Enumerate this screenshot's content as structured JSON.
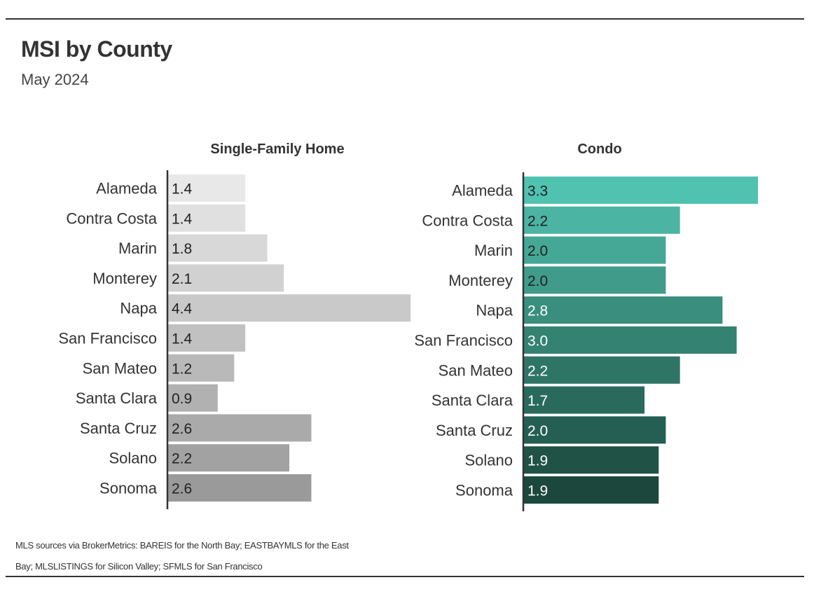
{
  "title": "MSI by County",
  "subtitle": "May 2024",
  "footer": "MLS sources via BrokerMetrics: BAREIS for the North Bay; EASTBAYMLS for the East Bay; MLSLISTINGS for Silicon Valley; SFMLS for San Francisco",
  "chart_data": [
    {
      "type": "bar",
      "orientation": "horizontal",
      "title": "Single-Family Home",
      "categories": [
        "Alameda",
        "Contra Costa",
        "Marin",
        "Monterey",
        "Napa",
        "San Francisco",
        "San Mateo",
        "Santa Clara",
        "Santa Cruz",
        "Solano",
        "Sonoma"
      ],
      "values": [
        1.4,
        1.4,
        1.8,
        2.1,
        4.4,
        1.4,
        1.2,
        0.9,
        2.6,
        2.2,
        2.6
      ],
      "data_labels": [
        "1.4",
        "1.4",
        "1.8",
        "2.1",
        "4.4",
        "1.4",
        "1.2",
        "0.9",
        "2.6",
        "2.2",
        "2.6"
      ],
      "colors": [
        "#e8e8e8",
        "#e0e0e0",
        "#d8d8d8",
        "#d1d1d1",
        "#c9c9c9",
        "#c1c1c1",
        "#b9b9b9",
        "#b1b1b1",
        "#aaaaaa",
        "#a2a2a2",
        "#9a9a9a"
      ],
      "label_color": "#222222",
      "xlim": [
        0,
        4.4
      ],
      "grid": false,
      "legend": "none"
    },
    {
      "type": "bar",
      "orientation": "horizontal",
      "title": "Condo",
      "categories": [
        "Alameda",
        "Contra Costa",
        "Marin",
        "Monterey",
        "Napa",
        "San Francisco",
        "San Mateo",
        "Santa Clara",
        "Santa Cruz",
        "Solano",
        "Sonoma"
      ],
      "values": [
        3.3,
        2.2,
        2.0,
        2.0,
        2.8,
        3.0,
        2.2,
        1.7,
        2.0,
        1.9,
        1.9
      ],
      "data_labels": [
        "3.3",
        "2.2",
        "2.0",
        "2.0",
        "2.8",
        "3.0",
        "2.2",
        "1.7",
        "2.0",
        "1.9",
        "1.9"
      ],
      "colors": [
        "#50c2b0",
        "#4cb4a2",
        "#45a896",
        "#409b8a",
        "#3a8e7e",
        "#348272",
        "#2f7566",
        "#2a6a5c",
        "#255e52",
        "#205246",
        "#1b473c"
      ],
      "label_colors": [
        "#222222",
        "#222222",
        "#222222",
        "#222222",
        "#ffffff",
        "#ffffff",
        "#ffffff",
        "#ffffff",
        "#ffffff",
        "#ffffff",
        "#ffffff"
      ],
      "xlim": [
        0,
        3.3
      ],
      "grid": false,
      "legend": "none"
    }
  ]
}
